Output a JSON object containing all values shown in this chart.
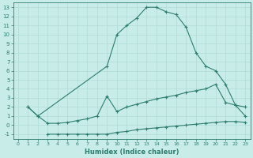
{
  "line1_x": [
    1,
    2,
    9,
    10,
    11,
    12,
    13,
    14,
    15,
    16,
    17,
    18,
    19,
    20,
    21,
    22,
    23
  ],
  "line1_y": [
    2,
    1,
    6.5,
    10,
    11.0,
    11.8,
    13,
    13,
    12.5,
    12.2,
    10.8,
    8.0,
    6.5,
    6.0,
    4.5,
    2.2,
    2.0
  ],
  "line2_x": [
    1,
    2,
    3,
    4,
    5,
    6,
    7,
    8,
    9,
    10,
    11,
    12,
    13,
    14,
    15,
    16,
    17,
    18,
    19,
    20,
    21,
    22,
    23
  ],
  "line2_y": [
    2,
    1.0,
    0.2,
    0.2,
    0.3,
    0.5,
    0.7,
    1.0,
    3.2,
    1.5,
    2.0,
    2.3,
    2.6,
    2.9,
    3.1,
    3.3,
    3.6,
    3.8,
    4.0,
    4.5,
    2.5,
    2.2,
    1.0
  ],
  "line3_x": [
    3,
    4,
    5,
    6,
    7,
    8,
    9,
    10,
    11,
    12,
    13,
    14,
    15,
    16,
    17,
    18,
    19,
    20,
    21,
    22,
    23
  ],
  "line3_y": [
    -1,
    -1,
    -1,
    -1,
    -1,
    -1,
    -1,
    -0.8,
    -0.7,
    -0.5,
    -0.4,
    -0.3,
    -0.2,
    -0.1,
    0.0,
    0.1,
    0.2,
    0.3,
    0.4,
    0.4,
    0.3
  ],
  "color": "#2e7d6e",
  "bg_color": "#c8ece8",
  "grid_color": "#b0dbd6",
  "xlabel": "Humidex (Indice chaleur)",
  "xlim": [
    -0.5,
    23.5
  ],
  "ylim": [
    -1.5,
    13.5
  ],
  "xticks": [
    0,
    1,
    2,
    3,
    4,
    5,
    6,
    7,
    8,
    9,
    10,
    11,
    12,
    13,
    14,
    15,
    16,
    17,
    18,
    19,
    20,
    21,
    22,
    23
  ],
  "yticks": [
    -1,
    0,
    1,
    2,
    3,
    4,
    5,
    6,
    7,
    8,
    9,
    10,
    11,
    12,
    13
  ]
}
